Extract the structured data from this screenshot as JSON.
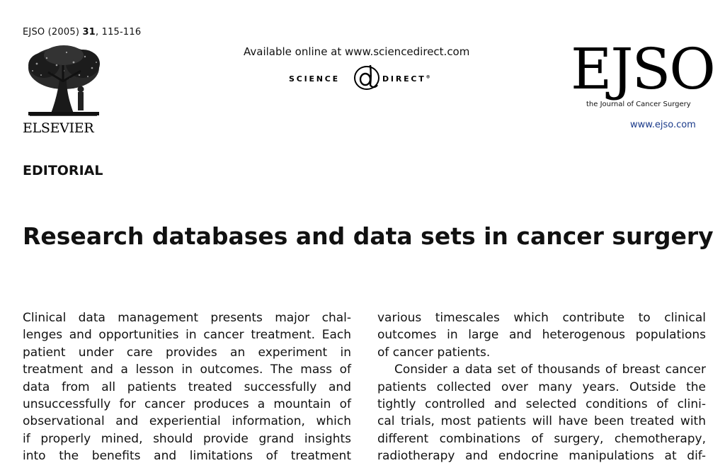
{
  "header": {
    "citation": {
      "journal": "EJSO (2005)",
      "volume": "31",
      "pages": ", 115-116"
    },
    "publisher": "ELSEVIER",
    "publisher_logo": "tree-icon",
    "online_note": "Available online at www.sciencedirect.com",
    "sd_logo": {
      "left": "SCIENCE",
      "right": "DIRECT",
      "mark": "®"
    },
    "journal_mark": "EJSO",
    "journal_subtitle": "the Journal of Cancer Surgery",
    "journal_url": "www.ejso.com"
  },
  "article": {
    "section": "EDITORIAL",
    "title": "Research databases and data sets in cancer surgery",
    "left_column": [
      "Clinical data management presents major chal-",
      "lenges and opportunities in cancer treatment. Each",
      "patient under care provides an experiment in",
      "treatment and a lesson in outcomes. The mass of",
      "data from all patients treated successfully and",
      "unsuccessfully for cancer produces a mountain of",
      "observational and experiential information, which",
      "if properly mined, should provide grand insights",
      "into the benefits and limitations of treatment"
    ],
    "right_column": [
      "various timescales which contribute to clinical",
      "outcomes in large and heterogenous populations",
      "of cancer patients.",
      "Consider a data set of thousands of breast cancer",
      "patients collected over many years. Outside the",
      "tightly controlled and selected conditions of clini-",
      "cal trials, most patients will have been treated with",
      "different combinations of surgery, chemotherapy,",
      "radiotherapy and endocrine manipulations at dif-"
    ]
  },
  "colors": {
    "text": "#111111",
    "link": "#1a3a8a"
  }
}
